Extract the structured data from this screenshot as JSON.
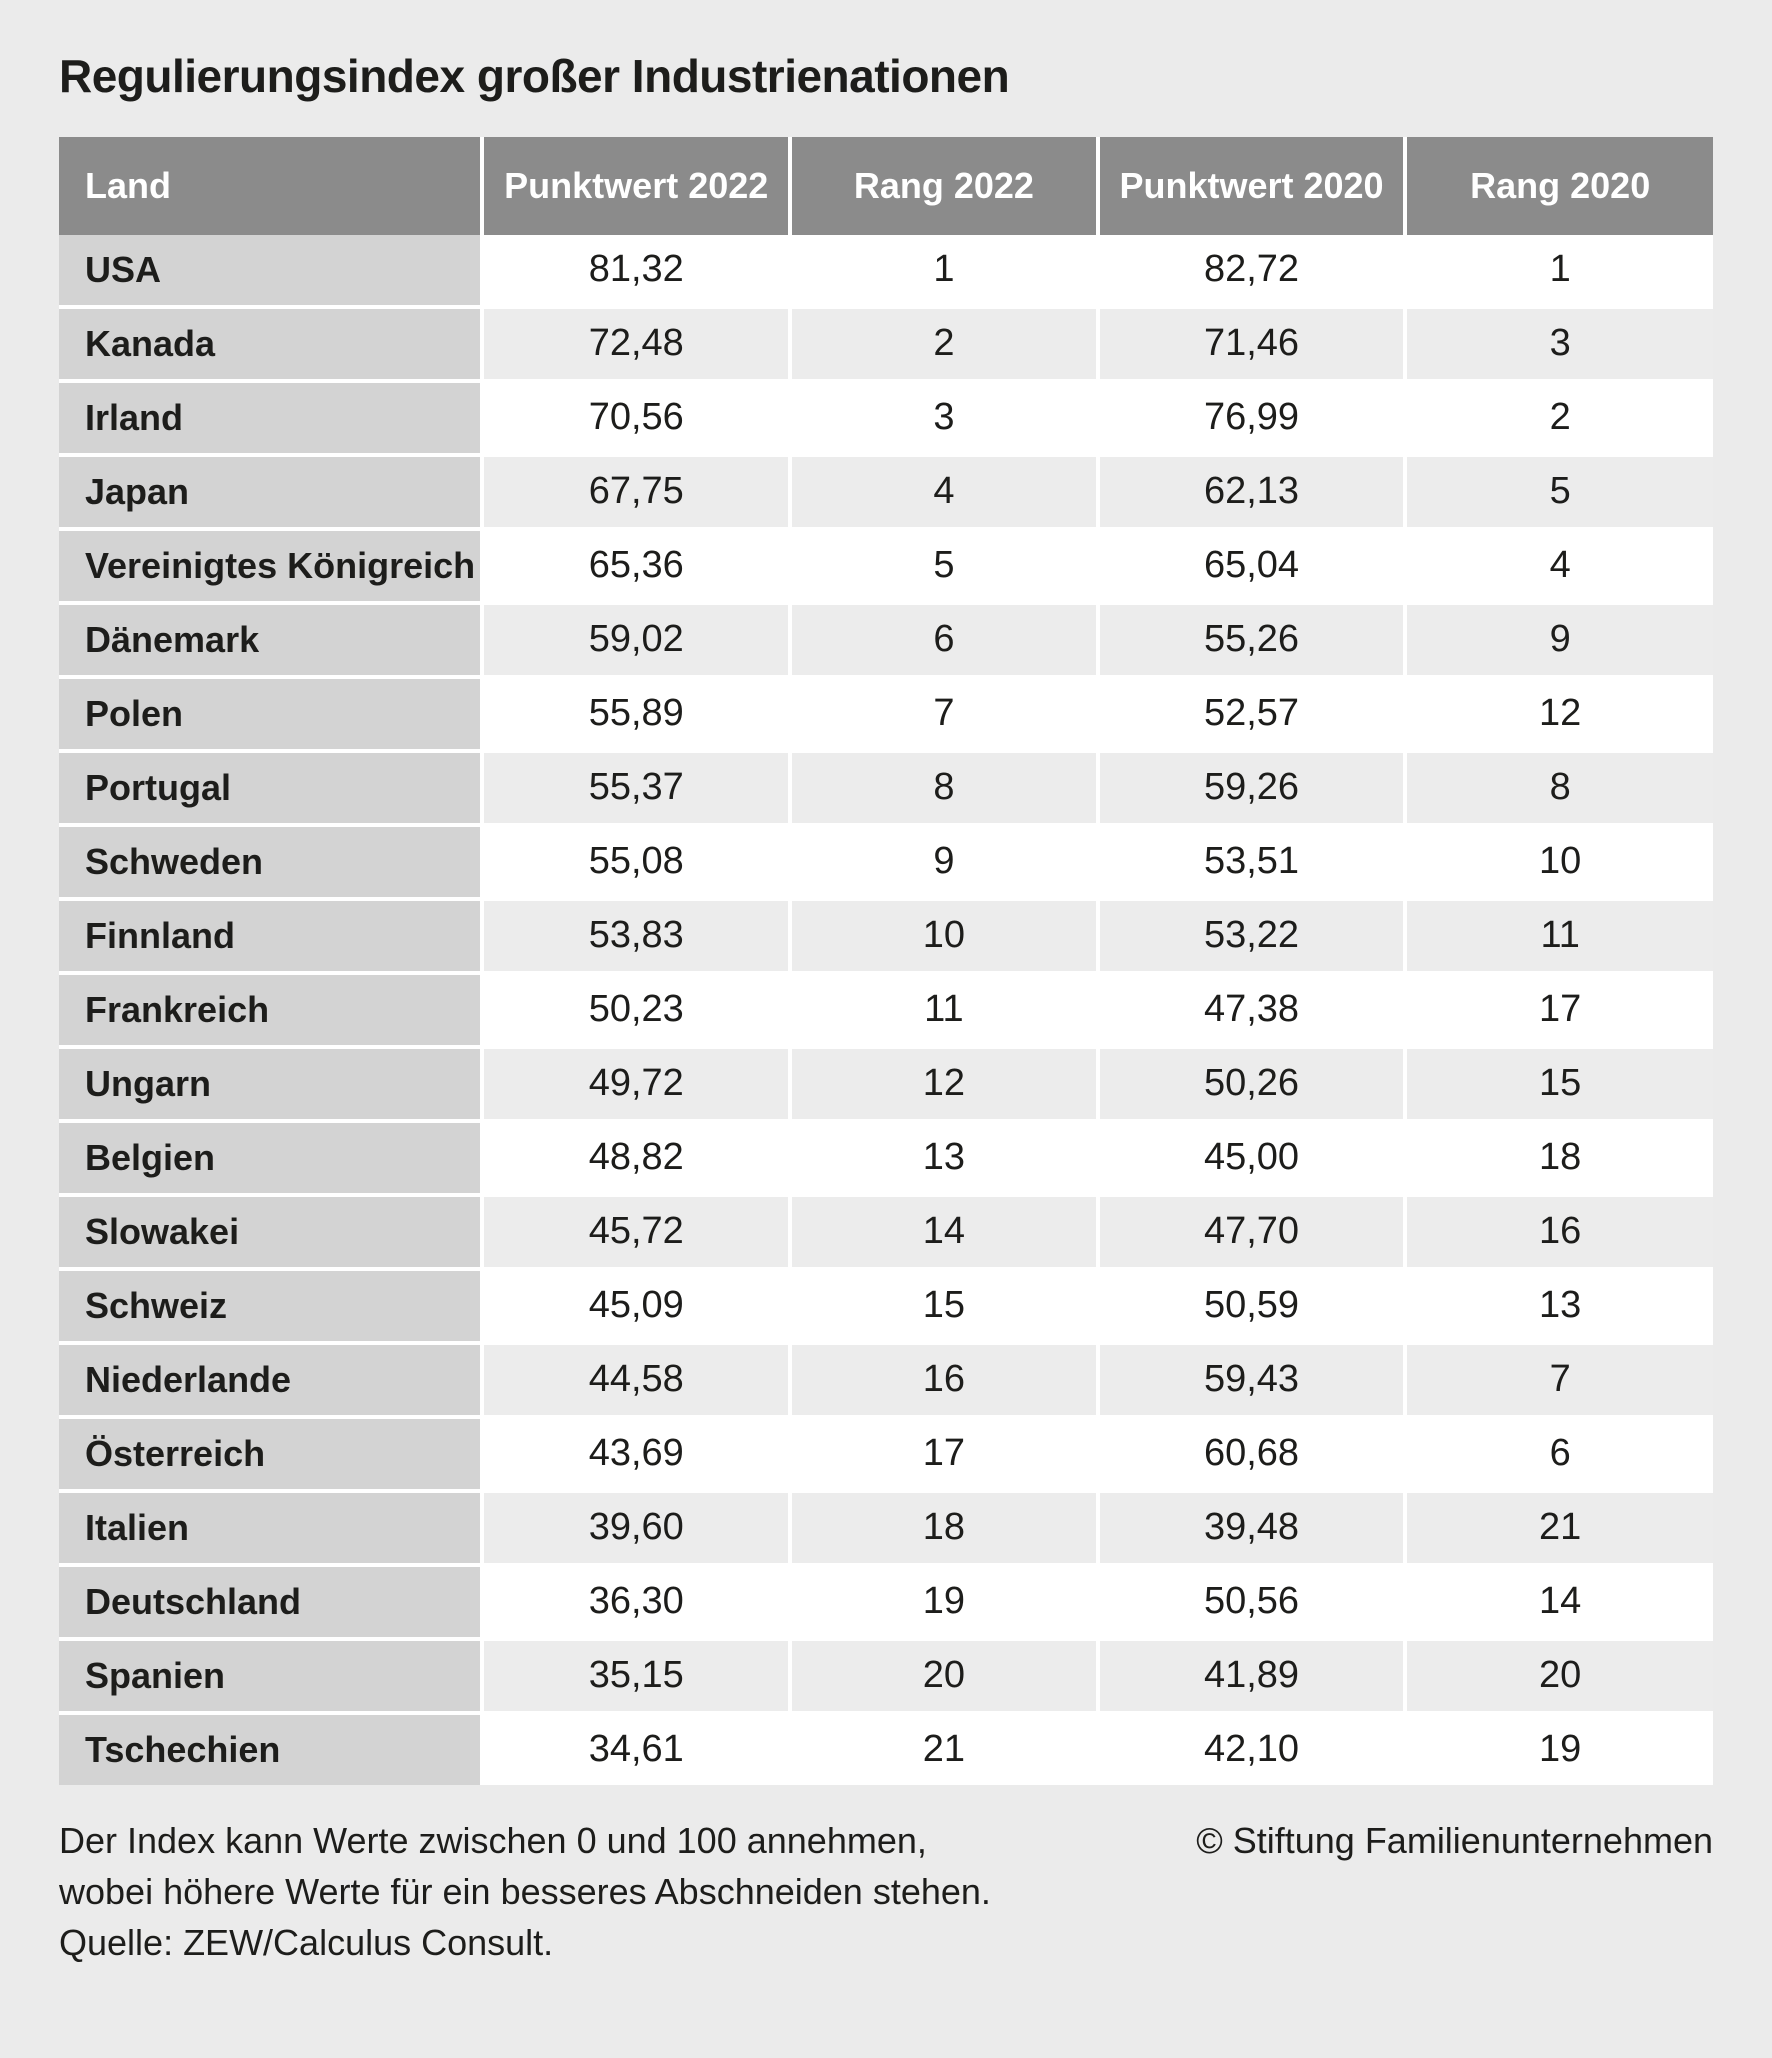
{
  "title": "Regulierungsindex großer Industrienationen",
  "colors": {
    "page_bg": "#ebebeb",
    "header_bg": "#8b8b8b",
    "header_text": "#ffffff",
    "land_cell_bg": "#d3d3d3",
    "row_odd_bg": "#ffffff",
    "row_even_bg": "#ececec",
    "separator": "#ffffff",
    "text": "#1d1d1b"
  },
  "chart_data": {
    "type": "table",
    "title": "Regulierungsindex großer Industrienationen",
    "columns": [
      "Land",
      "Punktwert 2022",
      "Rang 2022",
      "Punktwert 2020",
      "Rang 2020"
    ],
    "rows": [
      [
        "USA",
        "81,32",
        "1",
        "82,72",
        "1"
      ],
      [
        "Kanada",
        "72,48",
        "2",
        "71,46",
        "3"
      ],
      [
        "Irland",
        "70,56",
        "3",
        "76,99",
        "2"
      ],
      [
        "Japan",
        "67,75",
        "4",
        "62,13",
        "5"
      ],
      [
        "Vereinigtes Königreich",
        "65,36",
        "5",
        "65,04",
        "4"
      ],
      [
        "Dänemark",
        "59,02",
        "6",
        "55,26",
        "9"
      ],
      [
        "Polen",
        "55,89",
        "7",
        "52,57",
        "12"
      ],
      [
        "Portugal",
        "55,37",
        "8",
        "59,26",
        "8"
      ],
      [
        "Schweden",
        "55,08",
        "9",
        "53,51",
        "10"
      ],
      [
        "Finnland",
        "53,83",
        "10",
        "53,22",
        "11"
      ],
      [
        "Frankreich",
        "50,23",
        "11",
        "47,38",
        "17"
      ],
      [
        "Ungarn",
        "49,72",
        "12",
        "50,26",
        "15"
      ],
      [
        "Belgien",
        "48,82",
        "13",
        "45,00",
        "18"
      ],
      [
        "Slowakei",
        "45,72",
        "14",
        "47,70",
        "16"
      ],
      [
        "Schweiz",
        "45,09",
        "15",
        "50,59",
        "13"
      ],
      [
        "Niederlande",
        "44,58",
        "16",
        "59,43",
        "7"
      ],
      [
        "Österreich",
        "43,69",
        "17",
        "60,68",
        "6"
      ],
      [
        "Italien",
        "39,60",
        "18",
        "39,48",
        "21"
      ],
      [
        "Deutschland",
        "36,30",
        "19",
        "50,56",
        "14"
      ],
      [
        "Spanien",
        "35,15",
        "20",
        "41,89",
        "20"
      ],
      [
        "Tschechien",
        "34,61",
        "21",
        "42,10",
        "19"
      ]
    ],
    "value_range_note": "Der Index kann Werte zwischen 0 und 100 annehmen",
    "legend_position": "none"
  },
  "footer": {
    "lines": [
      "Der Index kann Werte zwischen 0 und 100 annehmen,",
      "wobei höhere Werte für ein besseres Abschneiden stehen.",
      "Quelle: ZEW/Calculus Consult."
    ],
    "copyright": "© Stiftung Familienunternehmen"
  }
}
